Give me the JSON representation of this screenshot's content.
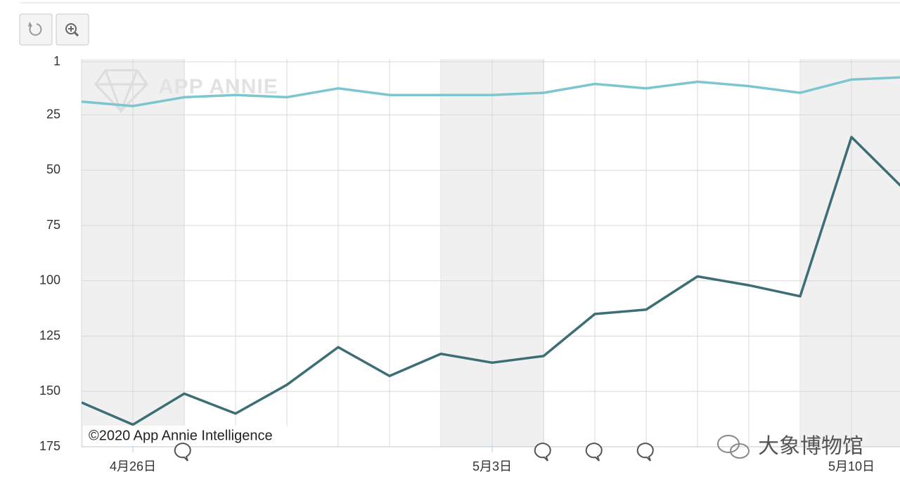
{
  "chart_data": {
    "type": "line",
    "watermark": "APP ANNIE",
    "copyright": "©2020 App Annie Intelligence",
    "overlay_text": "大象博物馆",
    "categories": [
      null,
      "4月26日",
      null,
      null,
      null,
      null,
      null,
      null,
      "5月3日",
      null,
      null,
      null,
      null,
      null,
      null,
      "5月10日",
      null
    ],
    "series": [
      {
        "color": "#7cc6cf",
        "values": [
          19,
          21,
          17,
          16,
          17,
          13,
          16,
          16,
          16,
          15,
          11,
          13,
          10,
          12,
          15,
          9,
          8
        ]
      },
      {
        "color": "#3d6e76",
        "values": [
          155,
          165,
          151,
          160,
          147,
          130,
          143,
          133,
          137,
          134,
          115,
          113,
          98,
          102,
          107,
          35,
          58
        ]
      }
    ],
    "ylim": [
      1,
      175
    ],
    "y_inverted": true,
    "yticks": [
      1,
      25,
      50,
      75,
      100,
      125,
      150,
      175
    ],
    "grid": true
  }
}
